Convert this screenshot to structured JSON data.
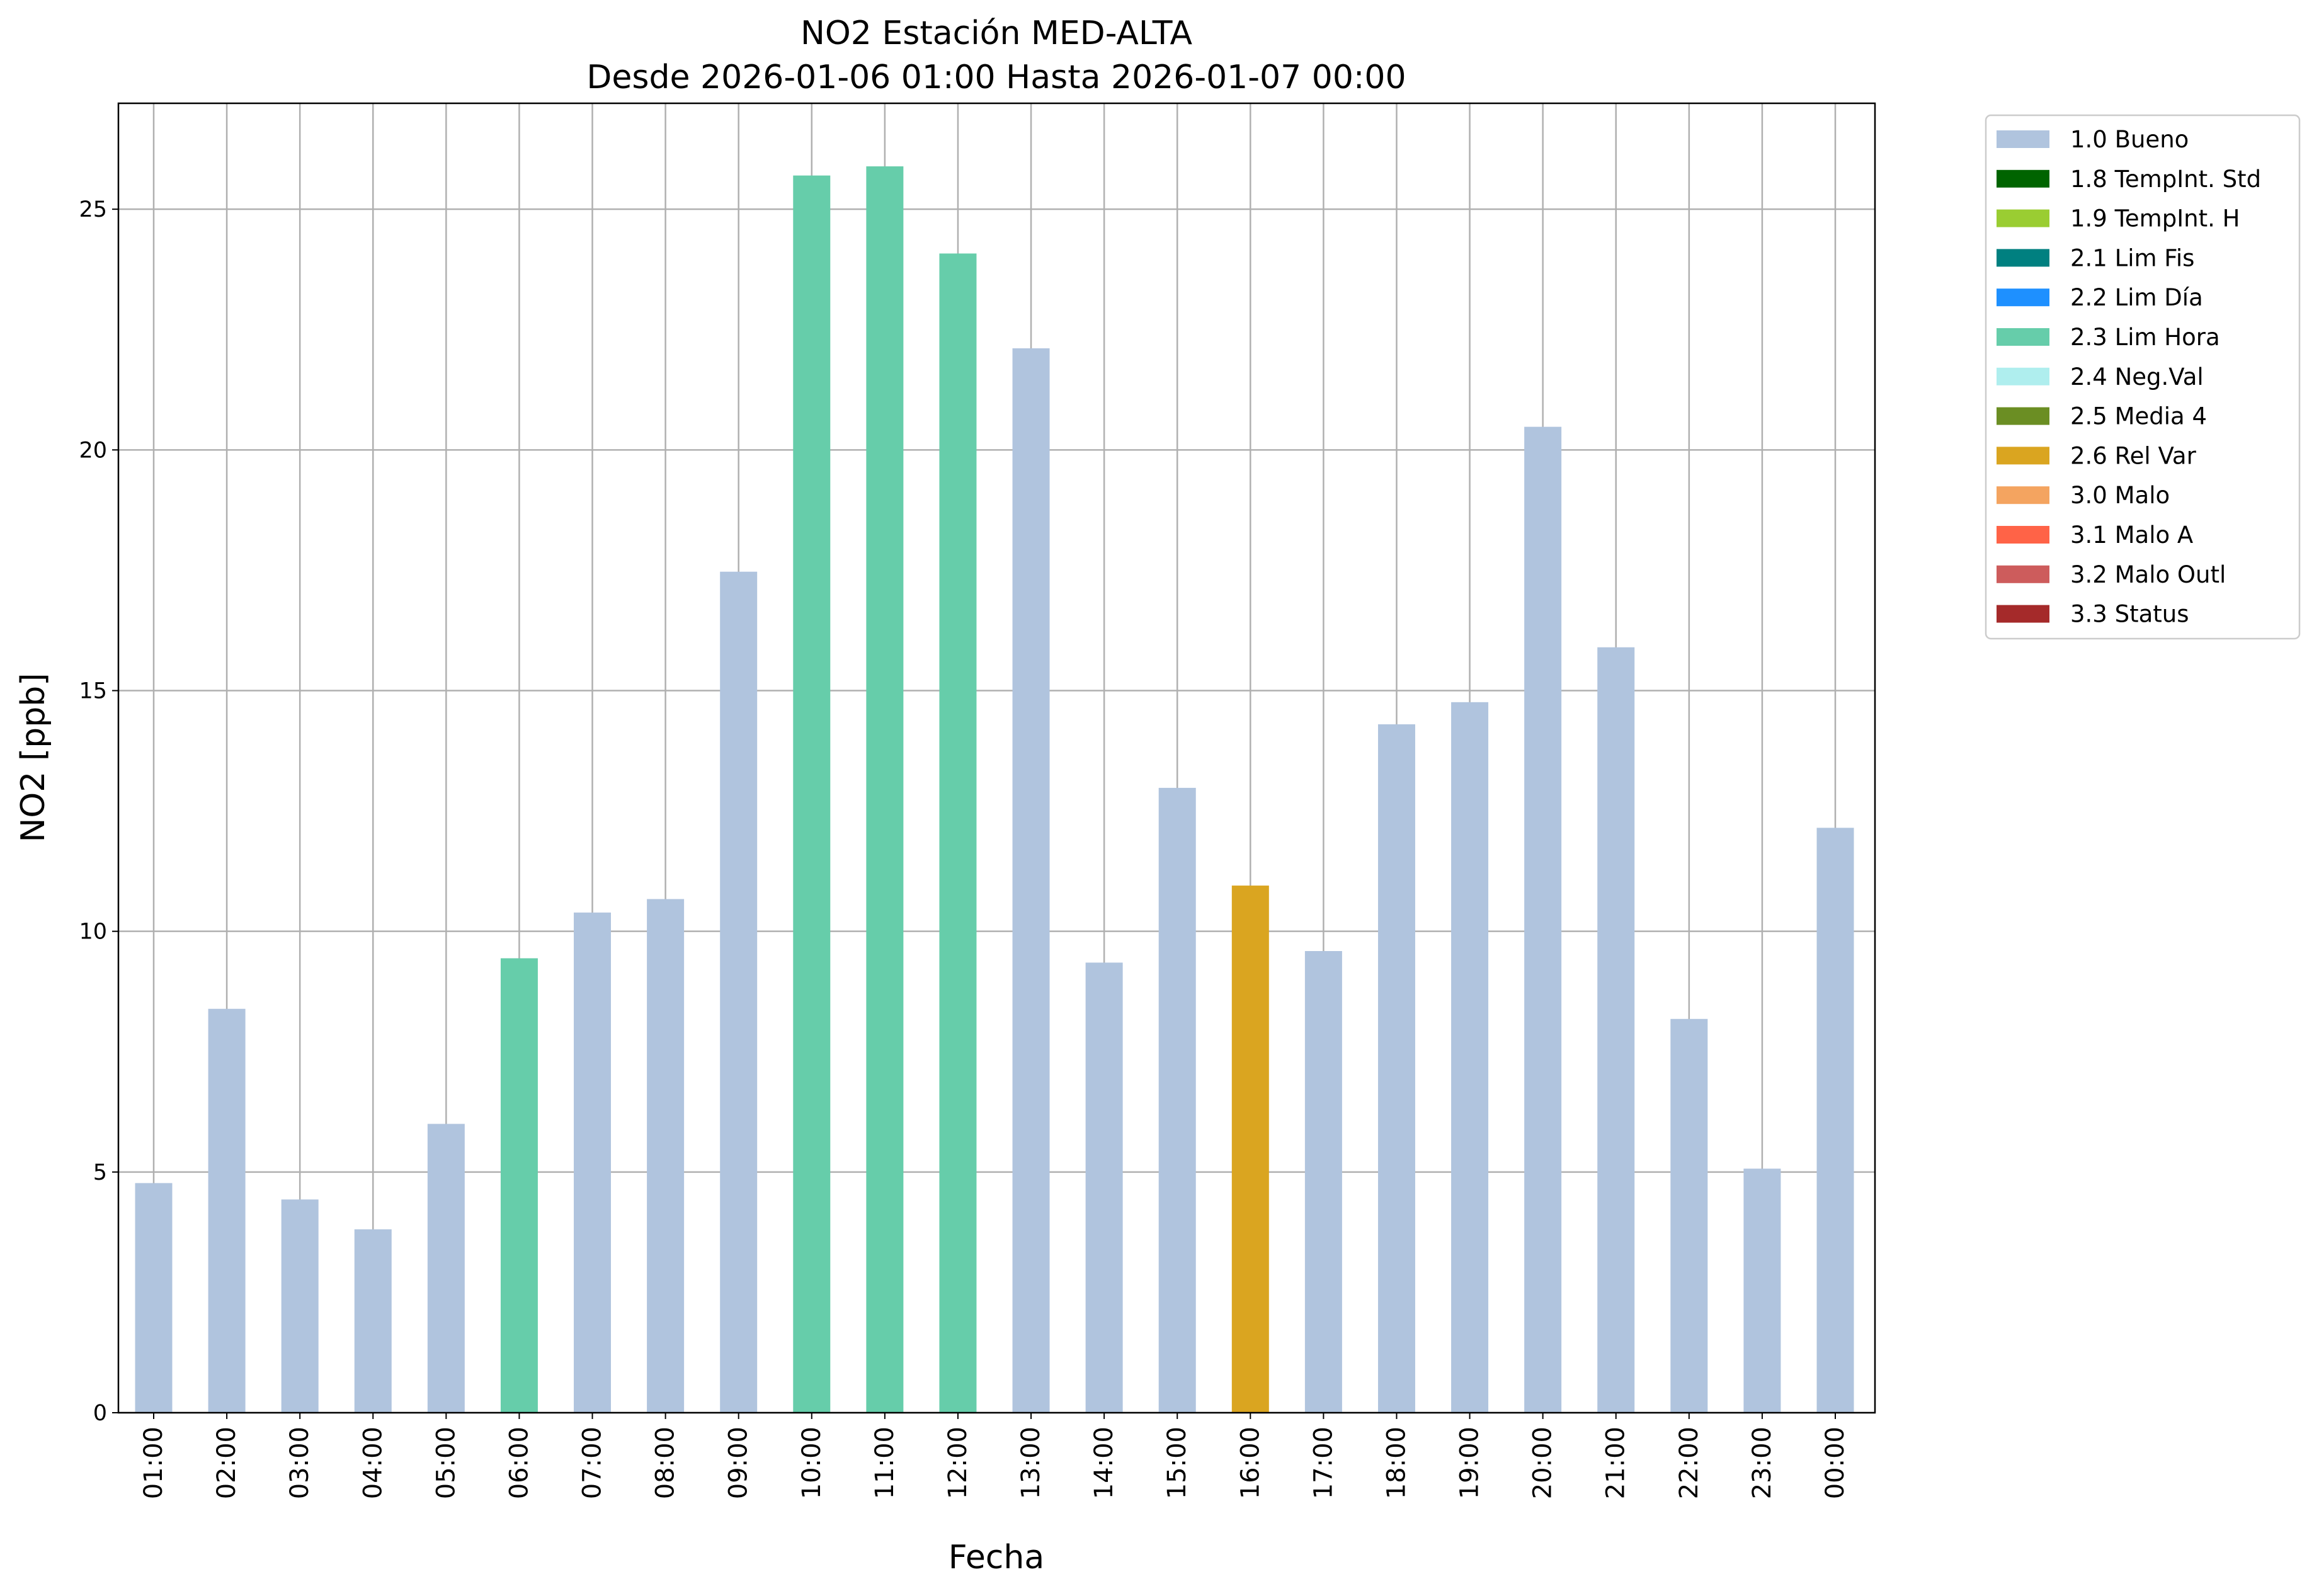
{
  "chart_data": {
    "type": "bar",
    "title": "NO2 Estación MED-ALTA",
    "subtitle": "Desde 2026-01-06 01:00 Hasta 2026-01-07 00:00",
    "xlabel": "Fecha",
    "ylabel": "NO2 [ppb]",
    "ylim": [
      0,
      27.2
    ],
    "yticks": [
      0,
      5,
      10,
      15,
      20,
      25
    ],
    "grid": true,
    "legend_placement": "outside-top-right",
    "categories": [
      "01:00",
      "02:00",
      "03:00",
      "04:00",
      "05:00",
      "06:00",
      "07:00",
      "08:00",
      "09:00",
      "10:00",
      "11:00",
      "12:00",
      "13:00",
      "14:00",
      "15:00",
      "16:00",
      "17:00",
      "18:00",
      "19:00",
      "20:00",
      "21:00",
      "22:00",
      "23:00",
      "00:00"
    ],
    "values": [
      4.77,
      8.39,
      4.43,
      3.81,
      6.0,
      9.44,
      10.39,
      10.67,
      17.47,
      25.7,
      25.89,
      24.08,
      22.11,
      9.35,
      12.98,
      10.95,
      9.59,
      14.3,
      14.76,
      20.48,
      15.9,
      8.18,
      5.07,
      12.15
    ],
    "flags": [
      "1.0 Bueno",
      "1.0 Bueno",
      "1.0 Bueno",
      "1.0 Bueno",
      "1.0 Bueno",
      "2.3 Lim Hora",
      "1.0 Bueno",
      "1.0 Bueno",
      "1.0 Bueno",
      "2.3 Lim Hora",
      "2.3 Lim Hora",
      "2.3 Lim Hora",
      "1.0 Bueno",
      "1.0 Bueno",
      "1.0 Bueno",
      "2.6 Rel Var",
      "1.0 Bueno",
      "1.0 Bueno",
      "1.0 Bueno",
      "1.0 Bueno",
      "1.0 Bueno",
      "1.0 Bueno",
      "1.0 Bueno",
      "1.0 Bueno"
    ],
    "legend": [
      {
        "label": "1.0 Bueno",
        "color": "#b0c4de"
      },
      {
        "label": "1.8 TempInt. Std",
        "color": "#006400"
      },
      {
        "label": "1.9 TempInt. H",
        "color": "#9acd32"
      },
      {
        "label": "2.1 Lim Fis",
        "color": "#008080"
      },
      {
        "label": "2.2 Lim Día",
        "color": "#1e90ff"
      },
      {
        "label": "2.3 Lim Hora",
        "color": "#66cdaa"
      },
      {
        "label": "2.4 Neg.Val",
        "color": "#afeeee"
      },
      {
        "label": "2.5 Media 4",
        "color": "#6b8e23"
      },
      {
        "label": "2.6 Rel Var",
        "color": "#daa520"
      },
      {
        "label": "3.0 Malo",
        "color": "#f4a460"
      },
      {
        "label": "3.1 Malo A",
        "color": "#ff6347"
      },
      {
        "label": "3.2 Malo Outl",
        "color": "#cd5c5c"
      },
      {
        "label": "3.3 Status",
        "color": "#a52a2a"
      }
    ]
  }
}
